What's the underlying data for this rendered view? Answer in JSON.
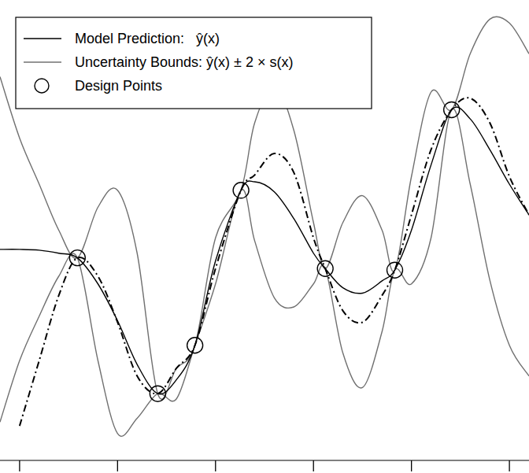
{
  "chart_data": {
    "type": "line",
    "x": [
      -0.2,
      0,
      0.2,
      0.4,
      0.59,
      0.8,
      1,
      1.2,
      1.41,
      1.6,
      1.79,
      2,
      2.26,
      2.4,
      2.6,
      2.8,
      3,
      3.12,
      3.3,
      3.5,
      3.7,
      3.83,
      4,
      4.2,
      4.41,
      4.6,
      4.8,
      5,
      5.2
    ],
    "xlim": [
      -0.2,
      5.2
    ],
    "xticks": [
      0,
      1,
      2,
      3,
      4,
      5
    ],
    "ylim": [
      0,
      6
    ],
    "yticks": [],
    "tick_labels": false,
    "grid": false,
    "legend": "top-left",
    "series": [
      {
        "name": "Model Prediction:   ŷ(x)",
        "type": "line",
        "color": "#000000",
        "line_style": "solid",
        "values": [
          2.75,
          2.75,
          2.74,
          2.7,
          2.64,
          2.3,
          1.82,
          1.25,
          0.87,
          1.05,
          1.5,
          2.6,
          3.52,
          3.63,
          3.5,
          3.15,
          2.7,
          2.5,
          2.25,
          2.18,
          2.34,
          2.48,
          3.0,
          3.85,
          4.57,
          4.45,
          4.05,
          3.6,
          3.2
        ]
      },
      {
        "name": "Uncertainty Bounds: ŷ(x) ± 2 × s(x)",
        "type": "band",
        "color": "#707070",
        "line_style": "solid",
        "upper": [
          5.0,
          4.2,
          3.6,
          3.0,
          2.64,
          3.3,
          3.52,
          2.7,
          0.87,
          1.2,
          1.5,
          2.9,
          3.52,
          4.4,
          4.88,
          4.3,
          3.1,
          2.5,
          3.1,
          3.45,
          3.0,
          2.48,
          3.7,
          4.8,
          4.57,
          5.3,
          5.75,
          5.7,
          5.3
        ],
        "lower": [
          0.5,
          1.3,
          1.88,
          2.4,
          2.64,
          1.3,
          0.35,
          0.55,
          0.87,
          0.8,
          1.5,
          2.3,
          3.52,
          2.86,
          2.12,
          2.0,
          2.3,
          2.5,
          1.4,
          0.95,
          1.68,
          2.48,
          2.3,
          2.9,
          4.57,
          3.6,
          2.35,
          1.5,
          1.1
        ]
      },
      {
        "name": "Design Points",
        "type": "scatter",
        "color": "#000000",
        "marker": "circle",
        "x": [
          0.59,
          1.41,
          1.79,
          2.26,
          3.12,
          3.83,
          4.41
        ],
        "values": [
          2.64,
          0.87,
          1.5,
          3.52,
          2.5,
          2.48,
          4.57
        ]
      },
      {
        "type": "line",
        "color": "#000000",
        "line_style": "dashdot",
        "values": [
          null,
          0.45,
          1.3,
          2.15,
          2.64,
          2.4,
          1.8,
          1.1,
          0.87,
          1.2,
          1.5,
          2.5,
          3.52,
          3.72,
          4.0,
          3.75,
          2.9,
          2.5,
          1.95,
          1.8,
          2.15,
          2.48,
          3.2,
          4.05,
          4.57,
          4.72,
          4.4,
          3.7,
          3.2
        ]
      }
    ]
  }
}
